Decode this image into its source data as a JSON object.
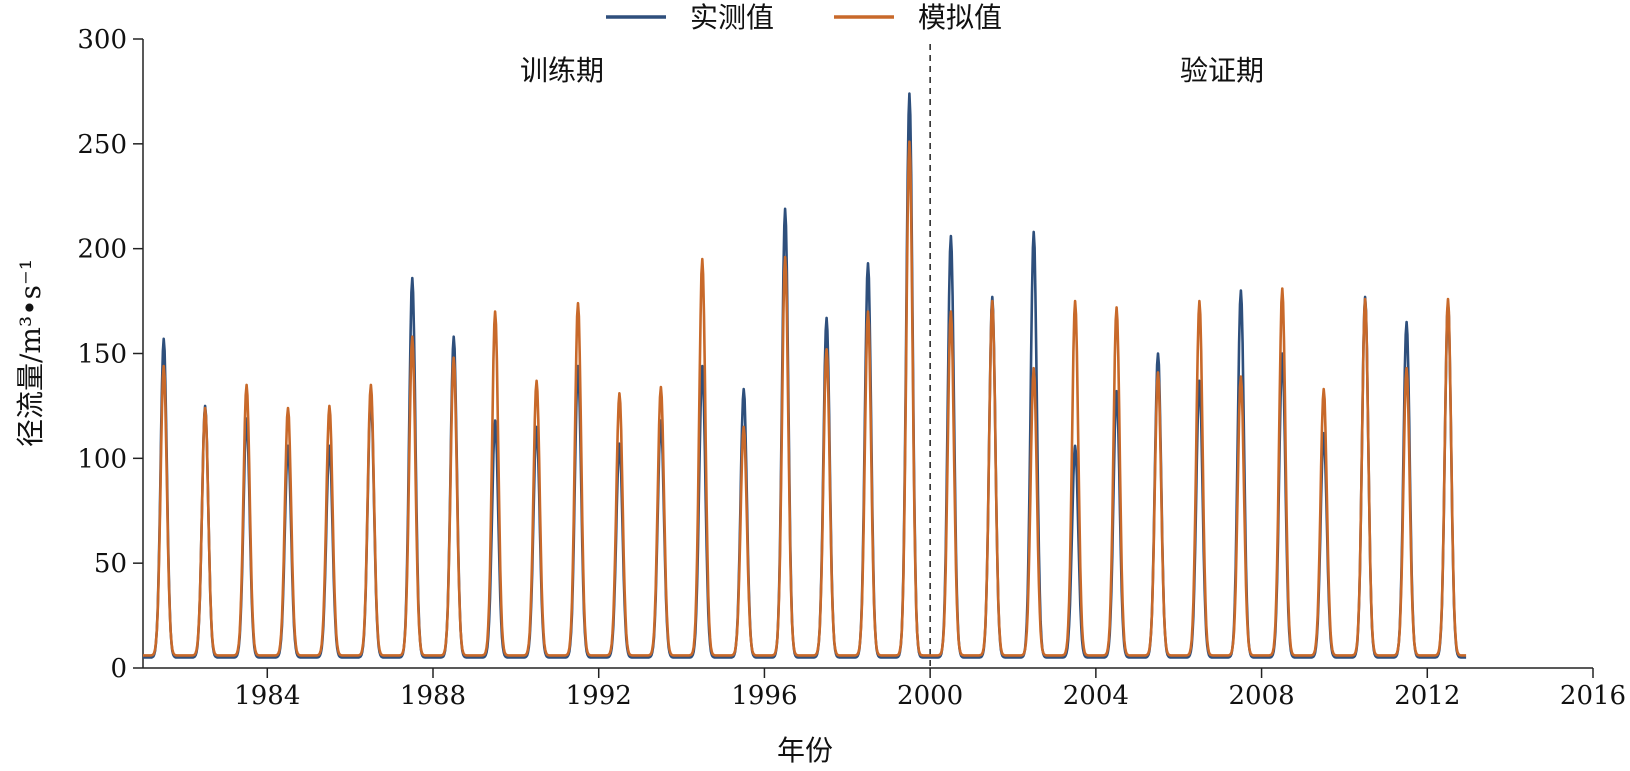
{
  "chart_data": {
    "type": "line",
    "xlabel": "年份",
    "ylabel": "径流量/m³•s⁻¹",
    "xlim": [
      1981.0,
      2016.0
    ],
    "ylim": [
      0,
      300
    ],
    "x_ticks": [
      1984,
      1988,
      1992,
      1996,
      2000,
      2004,
      2008,
      2012,
      2016
    ],
    "y_ticks": [
      0,
      50,
      100,
      150,
      200,
      250,
      300
    ],
    "grid": false,
    "legend_position": "top-center",
    "split_year": 2000,
    "period_labels": [
      "训练期",
      "验证期"
    ],
    "series": [
      {
        "name": "实测值",
        "color": "#2e4f7c",
        "peaks": [
          {
            "year": 1981.5,
            "value": 152
          },
          {
            "year": 1982.5,
            "value": 120
          },
          {
            "year": 1983.5,
            "value": 114
          },
          {
            "year": 1984.5,
            "value": 101
          },
          {
            "year": 1985.5,
            "value": 101
          },
          {
            "year": 1986.5,
            "value": 125
          },
          {
            "year": 1987.5,
            "value": 181
          },
          {
            "year": 1988.5,
            "value": 153
          },
          {
            "year": 1989.5,
            "value": 113
          },
          {
            "year": 1990.5,
            "value": 110
          },
          {
            "year": 1991.5,
            "value": 139
          },
          {
            "year": 1992.5,
            "value": 102
          },
          {
            "year": 1993.5,
            "value": 113
          },
          {
            "year": 1994.5,
            "value": 139
          },
          {
            "year": 1995.5,
            "value": 128
          },
          {
            "year": 1996.5,
            "value": 214
          },
          {
            "year": 1997.5,
            "value": 162
          },
          {
            "year": 1998.5,
            "value": 188
          },
          {
            "year": 1999.5,
            "value": 269
          },
          {
            "year": 2000.5,
            "value": 201
          },
          {
            "year": 2001.5,
            "value": 172
          },
          {
            "year": 2002.5,
            "value": 203
          },
          {
            "year": 2003.5,
            "value": 101
          },
          {
            "year": 2004.5,
            "value": 127
          },
          {
            "year": 2005.5,
            "value": 145
          },
          {
            "year": 2006.5,
            "value": 132
          },
          {
            "year": 2007.5,
            "value": 175
          },
          {
            "year": 2008.5,
            "value": 145
          },
          {
            "year": 2009.5,
            "value": 107
          },
          {
            "year": 2010.5,
            "value": 172
          },
          {
            "year": 2011.5,
            "value": 160
          },
          {
            "year": 2012.5,
            "value": 169
          }
        ],
        "baseflow": 5
      },
      {
        "name": "模拟值",
        "color": "#c8692a",
        "peaks": [
          {
            "year": 1981.5,
            "value": 138
          },
          {
            "year": 1982.5,
            "value": 118
          },
          {
            "year": 1983.5,
            "value": 129
          },
          {
            "year": 1984.5,
            "value": 118
          },
          {
            "year": 1985.5,
            "value": 119
          },
          {
            "year": 1986.5,
            "value": 129
          },
          {
            "year": 1987.5,
            "value": 152
          },
          {
            "year": 1988.5,
            "value": 142
          },
          {
            "year": 1989.5,
            "value": 164
          },
          {
            "year": 1990.5,
            "value": 131
          },
          {
            "year": 1991.5,
            "value": 168
          },
          {
            "year": 1992.5,
            "value": 125
          },
          {
            "year": 1993.5,
            "value": 128
          },
          {
            "year": 1994.5,
            "value": 189
          },
          {
            "year": 1995.5,
            "value": 109
          },
          {
            "year": 1996.5,
            "value": 190
          },
          {
            "year": 1997.5,
            "value": 146
          },
          {
            "year": 1998.5,
            "value": 164
          },
          {
            "year": 1999.5,
            "value": 245
          },
          {
            "year": 2000.5,
            "value": 164
          },
          {
            "year": 2001.5,
            "value": 169
          },
          {
            "year": 2002.5,
            "value": 137
          },
          {
            "year": 2003.5,
            "value": 169
          },
          {
            "year": 2004.5,
            "value": 166
          },
          {
            "year": 2005.5,
            "value": 135
          },
          {
            "year": 2006.5,
            "value": 169
          },
          {
            "year": 2007.5,
            "value": 133
          },
          {
            "year": 2008.5,
            "value": 175
          },
          {
            "year": 2009.5,
            "value": 127
          },
          {
            "year": 2010.5,
            "value": 170
          },
          {
            "year": 2011.5,
            "value": 137
          },
          {
            "year": 2012.5,
            "value": 170
          }
        ],
        "baseflow": 6
      }
    ]
  }
}
